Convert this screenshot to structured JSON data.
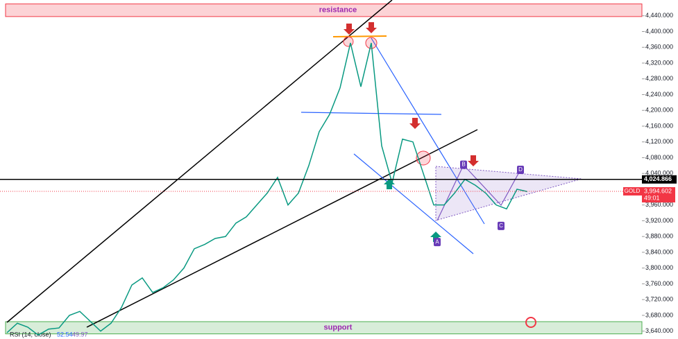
{
  "chart_data": {
    "type": "line",
    "color": "#089981",
    "grid": false,
    "values": [
      3636,
      3660,
      3650,
      3630,
      3645,
      3648,
      3680,
      3690,
      3665,
      3640,
      3660,
      3700,
      3757,
      3775,
      3738,
      3750,
      3770,
      3800,
      3849,
      3860,
      3875,
      3880,
      3914,
      3930,
      3960,
      3990,
      4030,
      3960,
      3990,
      4060,
      4146,
      4190,
      4257,
      4371,
      4260,
      4371,
      4110,
      4016,
      4127,
      4120,
      4040,
      3960,
      3960,
      3990,
      4025,
      4010,
      3990,
      3960,
      3950,
      4000,
      3994
    ],
    "ylim": [
      3620,
      4480
    ],
    "yticks": [
      {
        "value": 4440,
        "label": "4,440.000"
      },
      {
        "value": 4400,
        "label": "4,400.000"
      },
      {
        "value": 4360,
        "label": "4,360.000"
      },
      {
        "value": 4320,
        "label": "4,320.000"
      },
      {
        "value": 4280,
        "label": "4,280.000"
      },
      {
        "value": 4240,
        "label": "4,240.000"
      },
      {
        "value": 4200,
        "label": "4,200.000"
      },
      {
        "value": 4160,
        "label": "4,160.000"
      },
      {
        "value": 4120,
        "label": "4,120.000"
      },
      {
        "value": 4080,
        "label": "4,080.000"
      },
      {
        "value": 4040,
        "label": "4,040.000"
      },
      {
        "value": 3960,
        "label": "3,960.000"
      },
      {
        "value": 3920,
        "label": "3,920.000"
      },
      {
        "value": 3880,
        "label": "3,880.000"
      },
      {
        "value": 3840,
        "label": "3,840.000"
      },
      {
        "value": 3800,
        "label": "3,800.000"
      },
      {
        "value": 3760,
        "label": "3,760.000"
      },
      {
        "value": 3720,
        "label": "3,720.000"
      },
      {
        "value": 3680,
        "label": "3,680.000"
      },
      {
        "value": 3640,
        "label": "3,640.000"
      }
    ],
    "zones": [
      {
        "label": "resistance",
        "range": [
          4438,
          4470
        ],
        "color": "#f23645"
      },
      {
        "label": "support",
        "range": [
          3633,
          3664
        ],
        "color": "#4caf50"
      }
    ],
    "level_line": {
      "value": 4024.866,
      "label": "4,024.866"
    },
    "last_price": {
      "value": 3994.602,
      "label": "3,994.602",
      "symbol": "GOLD",
      "countdown": "49:01"
    },
    "pattern_points": [
      {
        "label": "A",
        "value": 3880
      },
      {
        "label": "B",
        "value": 4048
      },
      {
        "label": "C",
        "value": 3921
      },
      {
        "label": "D",
        "value": 4035
      }
    ],
    "indicator": {
      "label": "RSI (14, close)",
      "values": [
        52.54,
        49.97
      ]
    }
  }
}
